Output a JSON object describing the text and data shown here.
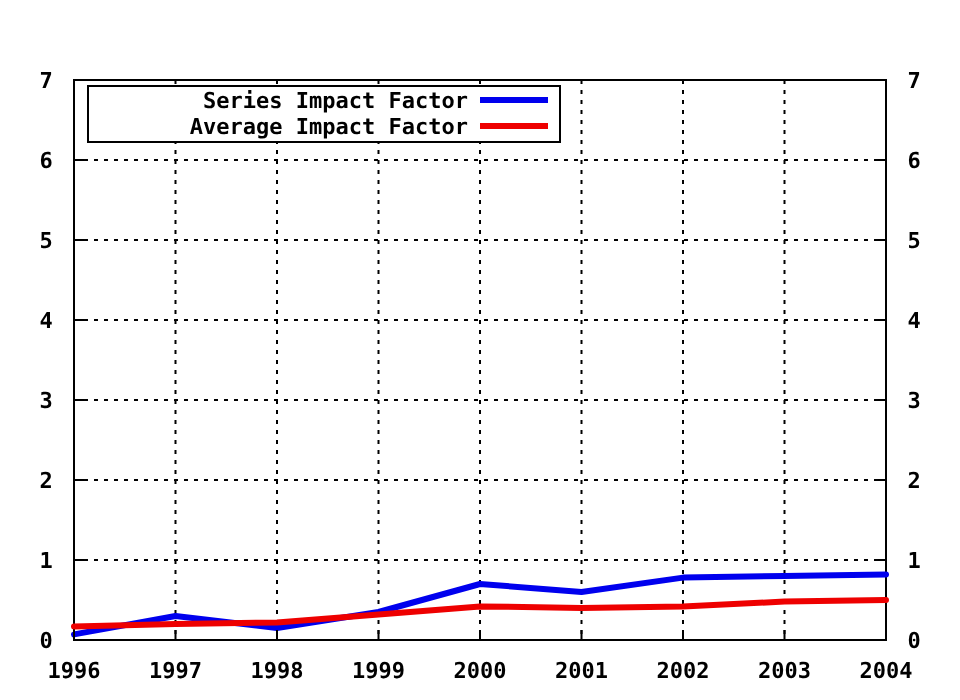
{
  "chart_data": {
    "type": "line",
    "x": [
      1996,
      1997,
      1998,
      1999,
      2000,
      2001,
      2002,
      2003,
      2004
    ],
    "series": [
      {
        "name": "Series Impact Factor",
        "color": "#0000ee",
        "values": [
          0.07,
          0.3,
          0.15,
          0.35,
          0.7,
          0.6,
          0.78,
          0.8,
          0.82
        ]
      },
      {
        "name": "Average Impact Factor",
        "color": "#ee0000",
        "values": [
          0.17,
          0.2,
          0.22,
          0.32,
          0.42,
          0.4,
          0.42,
          0.48,
          0.5
        ]
      }
    ],
    "xlim": [
      1996,
      2004
    ],
    "xticks": [
      1996,
      1997,
      1998,
      1999,
      2000,
      2001,
      2002,
      2003,
      2004
    ],
    "ylim": [
      0,
      7
    ],
    "yticks": [
      0,
      1,
      2,
      3,
      4,
      5,
      6,
      7
    ],
    "y2lim": [
      0,
      7
    ],
    "y2ticks": [
      0,
      1,
      2,
      3,
      4,
      5,
      6,
      7
    ],
    "grid": true,
    "legend": "top left",
    "marker": "none",
    "line_style": "solid"
  }
}
